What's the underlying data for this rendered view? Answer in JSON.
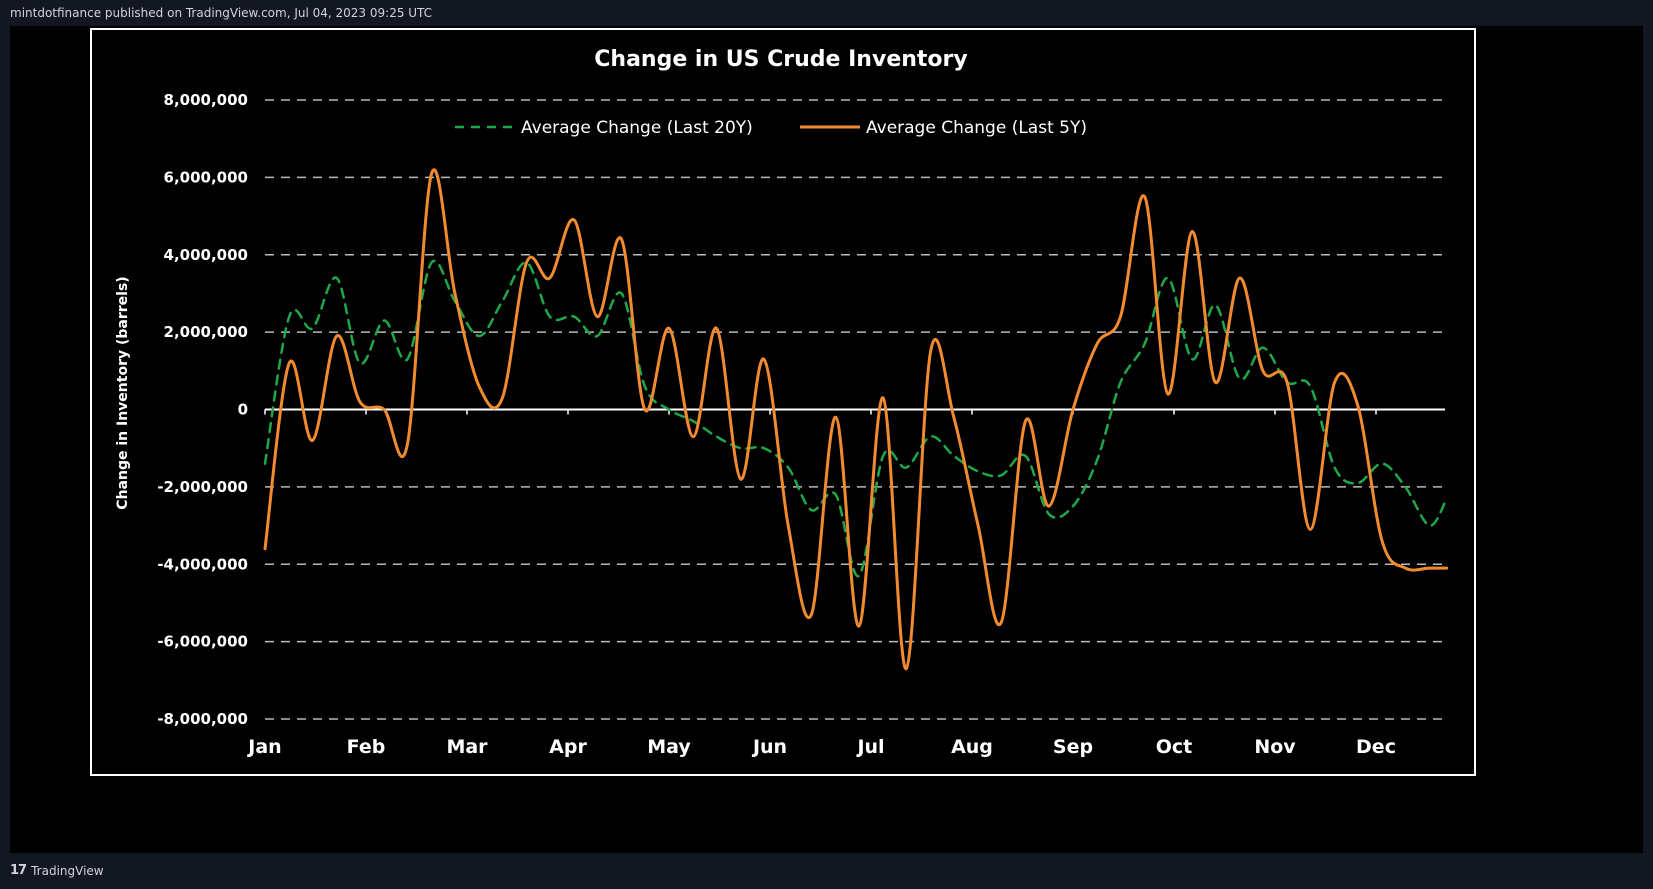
{
  "header": {
    "publisher_line": "mintdotfinance published on TradingView.com, Jul 04, 2023 09:25 UTC"
  },
  "footer": {
    "brand": "TradingView",
    "logo_glyph": "17"
  },
  "colors": {
    "page_background": "#131722",
    "chart_background": "#000000",
    "series_20y": "#1fa84a",
    "series_5y": "#f28b30",
    "grid": "#bbbbbb",
    "frame": "#ffffff"
  },
  "chart_data": {
    "type": "line",
    "title": "Change in US Crude Inventory",
    "ylabel": "Change in Inventory (barrels)",
    "xlabel": "",
    "x_tick_labels": [
      "Jan",
      "Feb",
      "Mar",
      "Apr",
      "May",
      "Jun",
      "Jul",
      "Aug",
      "Sep",
      "Oct",
      "Nov",
      "Dec"
    ],
    "y_tick_labels": [
      "8,000,000",
      "6,000,000",
      "4,000,000",
      "2,000,000",
      "0",
      "-2,000,000",
      "-4,000,000",
      "-6,000,000",
      "-8,000,000"
    ],
    "ylim": [
      -8000000,
      8000000
    ],
    "xlim": [
      0,
      11.7
    ],
    "grid": "horizontal dashed",
    "legend_position": "top-center",
    "series": [
      {
        "name": "Average Change (Last 20Y)",
        "style": "dashed",
        "color": "#1fa84a",
        "x": [
          0,
          0.24,
          0.47,
          0.71,
          0.94,
          1.18,
          1.41,
          1.65,
          1.88,
          2.12,
          2.35,
          2.59,
          2.82,
          3.06,
          3.29,
          3.53,
          3.76,
          4.0,
          4.24,
          4.47,
          4.71,
          4.94,
          5.18,
          5.41,
          5.65,
          5.88,
          6.12,
          6.35,
          6.59,
          6.82,
          7.06,
          7.29,
          7.53,
          7.76,
          8.0,
          8.24,
          8.47,
          8.71,
          8.94,
          9.18,
          9.41,
          9.65,
          9.88,
          10.12,
          10.35,
          10.59,
          10.82,
          11.06,
          11.29,
          11.53,
          11.7
        ],
        "values": [
          -1400000,
          2400000,
          2100000,
          3400000,
          1200000,
          2300000,
          1300000,
          3800000,
          2800000,
          1900000,
          2800000,
          3800000,
          2400000,
          2400000,
          1900000,
          3000000,
          600000,
          0,
          -300000,
          -700000,
          -1000000,
          -1000000,
          -1500000,
          -2600000,
          -2200000,
          -4300000,
          -1200000,
          -1500000,
          -700000,
          -1200000,
          -1600000,
          -1700000,
          -1200000,
          -2700000,
          -2500000,
          -1300000,
          700000,
          1700000,
          3400000,
          1300000,
          2700000,
          800000,
          1600000,
          700000,
          600000,
          -1500000,
          -1900000,
          -1400000,
          -2000000,
          -3000000,
          -2300000
        ]
      },
      {
        "name": "Average Change (Last 5Y)",
        "style": "solid",
        "color": "#f28b30",
        "x": [
          0,
          0.24,
          0.47,
          0.71,
          0.94,
          1.18,
          1.41,
          1.65,
          1.88,
          2.12,
          2.35,
          2.59,
          2.82,
          3.06,
          3.29,
          3.53,
          3.76,
          4.0,
          4.24,
          4.47,
          4.71,
          4.94,
          5.18,
          5.41,
          5.65,
          5.88,
          6.12,
          6.35,
          6.59,
          6.82,
          7.06,
          7.29,
          7.53,
          7.76,
          8.0,
          8.24,
          8.47,
          8.71,
          8.94,
          9.18,
          9.41,
          9.65,
          9.88,
          10.12,
          10.35,
          10.59,
          10.82,
          11.06,
          11.29,
          11.53,
          11.7
        ],
        "values": [
          -3600000,
          1200000,
          -800000,
          1900000,
          200000,
          0,
          -900000,
          6100000,
          3000000,
          600000,
          300000,
          3800000,
          3400000,
          4900000,
          2400000,
          4400000,
          0,
          2100000,
          -700000,
          2100000,
          -1800000,
          1300000,
          -3000000,
          -5300000,
          -200000,
          -5600000,
          300000,
          -6700000,
          1500000,
          -200000,
          -3000000,
          -5500000,
          -300000,
          -2500000,
          0,
          1700000,
          2400000,
          5500000,
          400000,
          4600000,
          700000,
          3400000,
          1000000,
          700000,
          -3100000,
          700000,
          100000,
          -3400000,
          -4100000,
          -4100000,
          -4100000
        ]
      }
    ]
  }
}
